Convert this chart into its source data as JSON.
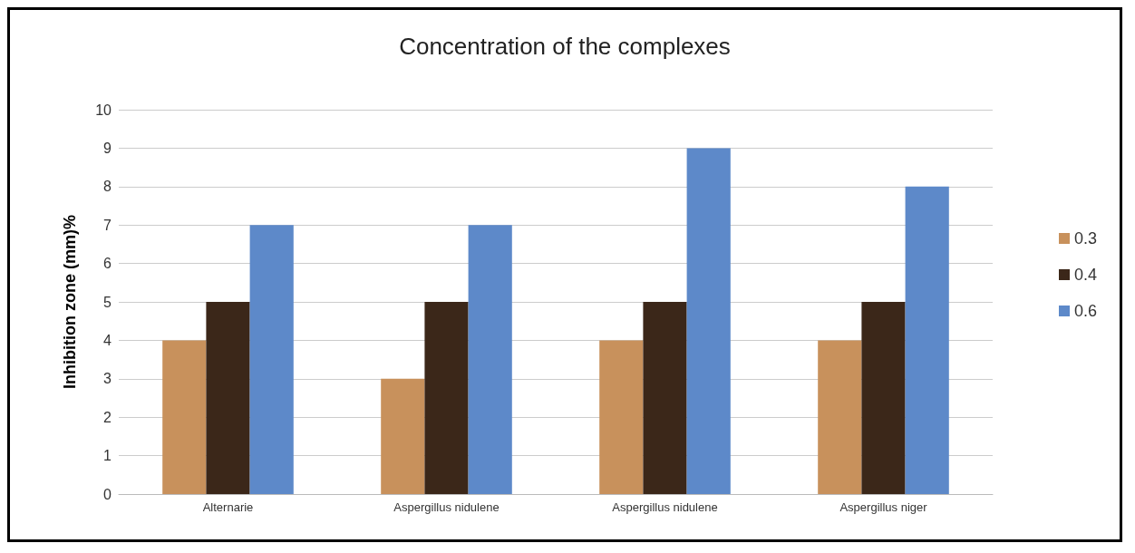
{
  "chart_data": {
    "type": "bar",
    "title": "Concentration of the complexes",
    "ylabel": "Inhibition zone (mm)%",
    "categories": [
      "Alternarie",
      "Aspergillus nidulene",
      "Aspergillus nidulene",
      "Aspergillus niger"
    ],
    "series": [
      {
        "name": "0.3",
        "color": "#c8915c",
        "values": [
          4,
          3,
          4,
          4
        ]
      },
      {
        "name": "0.4",
        "color": "#3b2719",
        "values": [
          5,
          5,
          5,
          5
        ]
      },
      {
        "name": "0.6",
        "color": "#5d89c9",
        "values": [
          7,
          7,
          9,
          8
        ]
      }
    ],
    "ylim": [
      0,
      10
    ],
    "yticks": [
      0,
      1,
      2,
      3,
      4,
      5,
      6,
      7,
      8,
      9,
      10
    ],
    "grid": "y",
    "legend": "right"
  }
}
